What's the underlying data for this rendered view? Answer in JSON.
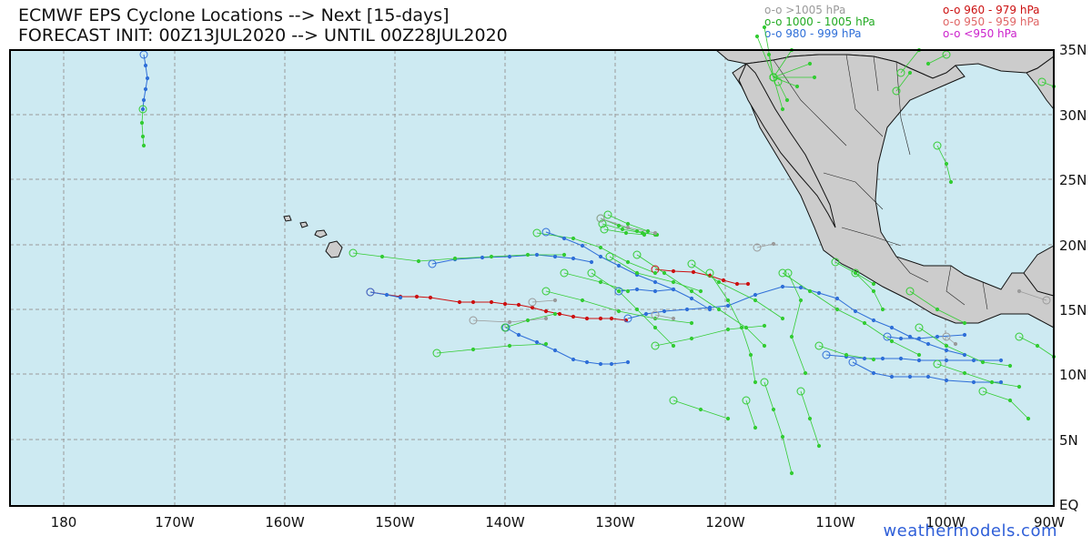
{
  "title": {
    "line1": "ECMWF EPS Cyclone Locations --> Next [15-days]",
    "line2": "FORECAST INIT: 00Z13JUL2020 --> UNTIL 00Z28JUL2020"
  },
  "legend": [
    {
      "label": "o-o >1005 hPa",
      "color": "#9a9a9a"
    },
    {
      "label": "o-o 1000 - 1005 hPa",
      "color": "#22aa22"
    },
    {
      "label": "o-o 980 - 999 hPa",
      "color": "#2f6fd8"
    },
    {
      "label": "o-o 960 - 979 hPa",
      "color": "#cc1111"
    },
    {
      "label": "o-o 950 - 959 hPa",
      "color": "#e06666"
    },
    {
      "label": "o-o <950 hPa",
      "color": "#cc22cc"
    }
  ],
  "lat_labels": [
    "35N",
    "30N",
    "25N",
    "20N",
    "15N",
    "10N",
    "5N",
    "EQ"
  ],
  "lon_labels": [
    "180",
    "170W",
    "160W",
    "150W",
    "140W",
    "130W",
    "120W",
    "110W",
    "100W",
    "90W"
  ],
  "credit": "weathermodels.com",
  "colors": {
    "ocean": "#cdeaf2",
    "land": "#cccccc",
    "grid": "#9a9a9a",
    "gray_track": "#9a9a9a",
    "green_track": "#33cc33",
    "blue_track": "#2f6fd8",
    "red_track": "#cc1111"
  }
}
